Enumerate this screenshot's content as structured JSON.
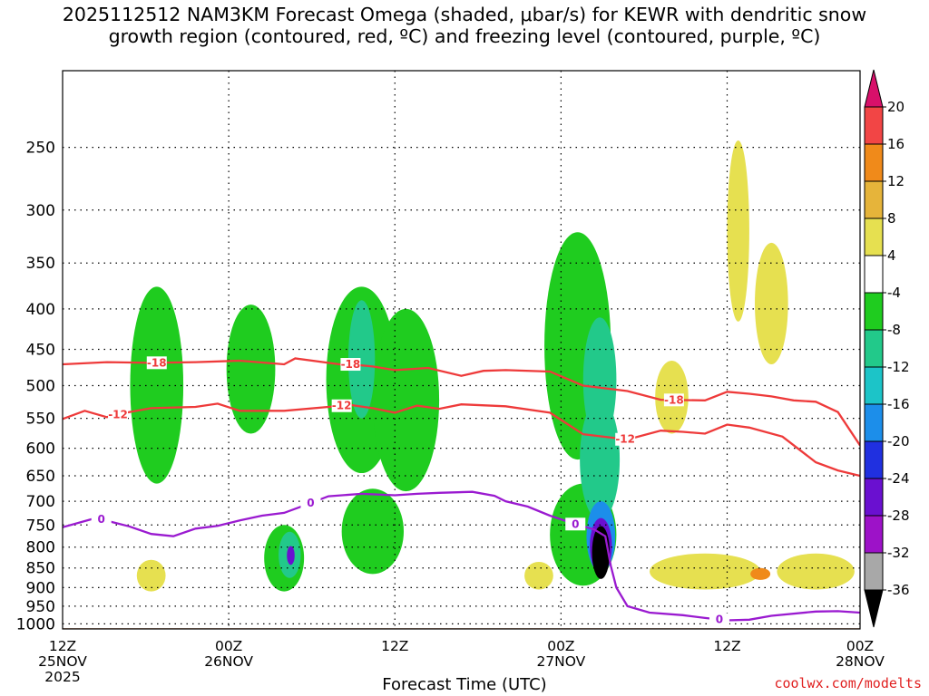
{
  "title": {
    "line1": "2025112512 NAM3KM Forecast Omega (shaded, μbar/s) for KEWR with dendritic snow",
    "line2": "growth region (contoured, red, ºC) and freezing level (contoured, purple, ºC)"
  },
  "credit": "coolwx.com/modelts",
  "colors": {
    "isotherm": "#ee3a3a",
    "freezing": "#9a1ad0",
    "ground": "#a0522d",
    "grid": "#000000"
  },
  "chart_data": {
    "type": "heatmap",
    "title": "NAM3KM Forecast Omega for KEWR",
    "xlabel": "Forecast Time (UTC)",
    "ylabel": "",
    "x_range_hours": [
      0,
      72
    ],
    "y_range_hpa": [
      1015,
      200
    ],
    "y_ticks": [
      250,
      300,
      350,
      400,
      450,
      500,
      550,
      600,
      650,
      700,
      750,
      800,
      850,
      900,
      950,
      1000
    ],
    "x_ticks": [
      {
        "hour": 0,
        "line1": "12Z",
        "line2": "25NOV",
        "line3": "2025"
      },
      {
        "hour": 15,
        "line1": "00Z",
        "line2": "26NOV",
        "line3": ""
      },
      {
        "hour": 30,
        "line1": "12Z",
        "line2": "",
        "line3": ""
      },
      {
        "hour": 45,
        "line1": "00Z",
        "line2": "27NOV",
        "line3": ""
      },
      {
        "hour": 60,
        "line1": "12Z",
        "line2": "",
        "line3": ""
      },
      {
        "hour": 72,
        "line1": "00Z",
        "line2": "28NOV",
        "line3": ""
      }
    ],
    "colorbar": {
      "units": "μbar/s",
      "levels": [
        20,
        16,
        12,
        8,
        4,
        -4,
        -8,
        -12,
        -16,
        -20,
        -24,
        -28,
        -32,
        -36
      ],
      "colors": [
        "#d8106a",
        "#f24545",
        "#f08a1a",
        "#e6b43a",
        "#e6e050",
        "#ffffff",
        "#1fcc1f",
        "#22c98a",
        "#1cc4c8",
        "#1c8eea",
        "#2030e0",
        "#6a10d0",
        "#9d12c8",
        "#a8a8a8",
        "#000000"
      ]
    },
    "isotherms": [
      {
        "name": "-18",
        "label": "-18",
        "points": [
          [
            0,
            470
          ],
          [
            4,
            467
          ],
          [
            8,
            468
          ],
          [
            12,
            467
          ],
          [
            16,
            465
          ],
          [
            20,
            470
          ],
          [
            21,
            462
          ],
          [
            25,
            470
          ],
          [
            26,
            470
          ],
          [
            28,
            473
          ],
          [
            30,
            478
          ],
          [
            33,
            475
          ],
          [
            36,
            486
          ],
          [
            38,
            479
          ],
          [
            40,
            478
          ],
          [
            44,
            480
          ],
          [
            47,
            500
          ],
          [
            51,
            508
          ],
          [
            54,
            521
          ],
          [
            58,
            522
          ],
          [
            60,
            509
          ],
          [
            62,
            512
          ],
          [
            64,
            516
          ],
          [
            66,
            522
          ],
          [
            68,
            524
          ],
          [
            70,
            540
          ],
          [
            72,
            595
          ]
        ]
      },
      {
        "name": "-12",
        "label": "-12",
        "points": [
          [
            0,
            551
          ],
          [
            2,
            538
          ],
          [
            4,
            548
          ],
          [
            6,
            540
          ],
          [
            8,
            534
          ],
          [
            12,
            532
          ],
          [
            14,
            527
          ],
          [
            16,
            538
          ],
          [
            20,
            538
          ],
          [
            24,
            532
          ],
          [
            26,
            529
          ],
          [
            28,
            534
          ],
          [
            30,
            541
          ],
          [
            32,
            530
          ],
          [
            34,
            535
          ],
          [
            36,
            528
          ],
          [
            40,
            531
          ],
          [
            44,
            541
          ],
          [
            47,
            576
          ],
          [
            51,
            585
          ],
          [
            54,
            570
          ],
          [
            56,
            572
          ],
          [
            58,
            575
          ],
          [
            60,
            560
          ],
          [
            62,
            565
          ],
          [
            65,
            580
          ],
          [
            68,
            625
          ],
          [
            70,
            640
          ],
          [
            72,
            650
          ]
        ]
      },
      {
        "name": "0",
        "label": "0",
        "points": [
          [
            0,
            755
          ],
          [
            3,
            735
          ],
          [
            6,
            753
          ],
          [
            8,
            770
          ],
          [
            10,
            775
          ],
          [
            12,
            758
          ],
          [
            14,
            752
          ],
          [
            16,
            740
          ],
          [
            18,
            730
          ],
          [
            20,
            724
          ],
          [
            22,
            707
          ],
          [
            24,
            690
          ],
          [
            27,
            685
          ],
          [
            30,
            688
          ],
          [
            32,
            685
          ],
          [
            34,
            683
          ],
          [
            37,
            681
          ],
          [
            39,
            689
          ],
          [
            40,
            700
          ],
          [
            42,
            711
          ],
          [
            44,
            730
          ],
          [
            46,
            746
          ],
          [
            48,
            760
          ],
          [
            49,
            775
          ],
          [
            49.5,
            845
          ],
          [
            50,
            900
          ],
          [
            51,
            950
          ],
          [
            53,
            968
          ],
          [
            56,
            975
          ],
          [
            58,
            983
          ],
          [
            60,
            990
          ],
          [
            62,
            988
          ],
          [
            64,
            977
          ],
          [
            68,
            965
          ],
          [
            70,
            964
          ],
          [
            72,
            968
          ]
        ]
      }
    ],
    "omega_regions": [
      {
        "t": 8.5,
        "p": 520,
        "dt": 2.4,
        "hp": 290,
        "level": -4
      },
      {
        "t": 17,
        "p": 485,
        "dt": 2.2,
        "hp": 180,
        "level": -4
      },
      {
        "t": 27,
        "p": 510,
        "dt": 3.2,
        "hp": 270,
        "level": -4
      },
      {
        "t": 31,
        "p": 540,
        "dt": 3.0,
        "hp": 280,
        "level": -4
      },
      {
        "t": 46.5,
        "p": 470,
        "dt": 3.0,
        "hp": 300,
        "level": -4
      },
      {
        "t": 20,
        "p": 830,
        "dt": 1.8,
        "hp": 160,
        "level": -4
      },
      {
        "t": 28,
        "p": 770,
        "dt": 2.8,
        "hp": 190,
        "level": -4
      },
      {
        "t": 47,
        "p": 780,
        "dt": 3.0,
        "hp": 230,
        "level": -4
      },
      {
        "t": 48.5,
        "p": 630,
        "dt": 1.8,
        "hp": 220,
        "level": -8
      },
      {
        "t": 48.5,
        "p": 500,
        "dt": 1.5,
        "hp": 180,
        "level": -8
      },
      {
        "t": 20.5,
        "p": 820,
        "dt": 1.0,
        "hp": 110,
        "level": -8
      },
      {
        "t": 27,
        "p": 470,
        "dt": 1.2,
        "hp": 160,
        "level": -8
      },
      {
        "t": 48.6,
        "p": 780,
        "dt": 1.3,
        "hp": 160,
        "level": -16
      },
      {
        "t": 48.6,
        "p": 800,
        "dt": 1.0,
        "hp": 130,
        "level": -24
      },
      {
        "t": 48.6,
        "p": 815,
        "dt": 0.8,
        "hp": 125,
        "level": -36
      },
      {
        "t": 20.6,
        "p": 820,
        "dt": 0.35,
        "hp": 45,
        "level": -24
      },
      {
        "t": 8,
        "p": 870,
        "dt": 1.3,
        "hp": 80,
        "level": 4
      },
      {
        "t": 43,
        "p": 870,
        "dt": 1.3,
        "hp": 70,
        "level": 4
      },
      {
        "t": 58,
        "p": 860,
        "dt": 5.0,
        "hp": 90,
        "level": 4
      },
      {
        "t": 68,
        "p": 860,
        "dt": 3.5,
        "hp": 90,
        "level": 4
      },
      {
        "t": 61,
        "p": 330,
        "dt": 1.0,
        "hp": 170,
        "level": 4
      },
      {
        "t": 64,
        "p": 400,
        "dt": 1.5,
        "hp": 140,
        "level": 4
      },
      {
        "t": 55,
        "p": 520,
        "dt": 1.5,
        "hp": 110,
        "level": 4
      },
      {
        "t": 63,
        "p": 865,
        "dt": 0.9,
        "hp": 30,
        "level": 12
      }
    ]
  }
}
